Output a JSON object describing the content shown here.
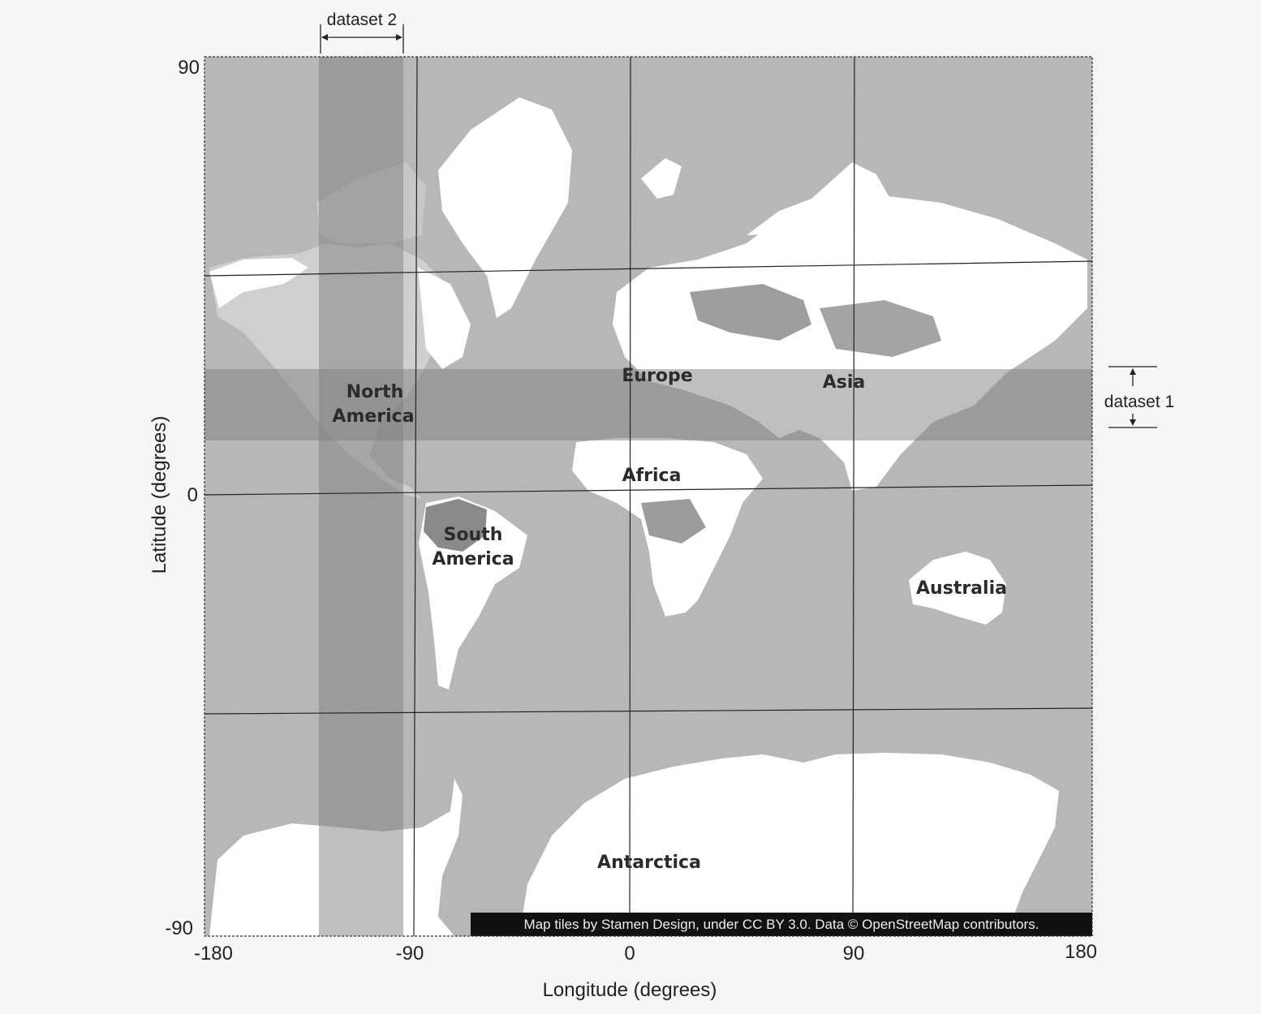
{
  "map": {
    "lon_axis_label": "Longitude (degrees)",
    "lat_axis_label": "Latitude (degrees)",
    "lon_ticks": [
      "-180",
      "-90",
      "0",
      "90",
      "180"
    ],
    "lat_ticks": [
      "90",
      "0",
      "-90"
    ],
    "regions": {
      "north_america": [
        "North",
        "America"
      ],
      "south_america": [
        "South",
        "America"
      ],
      "europe": "Europe",
      "asia": "Asia",
      "africa": "Africa",
      "australia": "Australia",
      "antarctica": "Antarctica"
    },
    "datasets": {
      "dataset1": {
        "label": "dataset 1",
        "orientation": "latitude band",
        "lat_range": [
          11,
          35
        ]
      },
      "dataset2": {
        "label": "dataset 2",
        "orientation": "longitude band",
        "lon_range": [
          -134,
          -101
        ]
      }
    },
    "attribution": "Map tiles by Stamen Design, under CC BY 3.0. Data © OpenStreetMap contributors.",
    "colors": {
      "ocean": "#b7b7b5",
      "land": "#ffffff",
      "band": "#808080",
      "grid": "#222222"
    }
  }
}
